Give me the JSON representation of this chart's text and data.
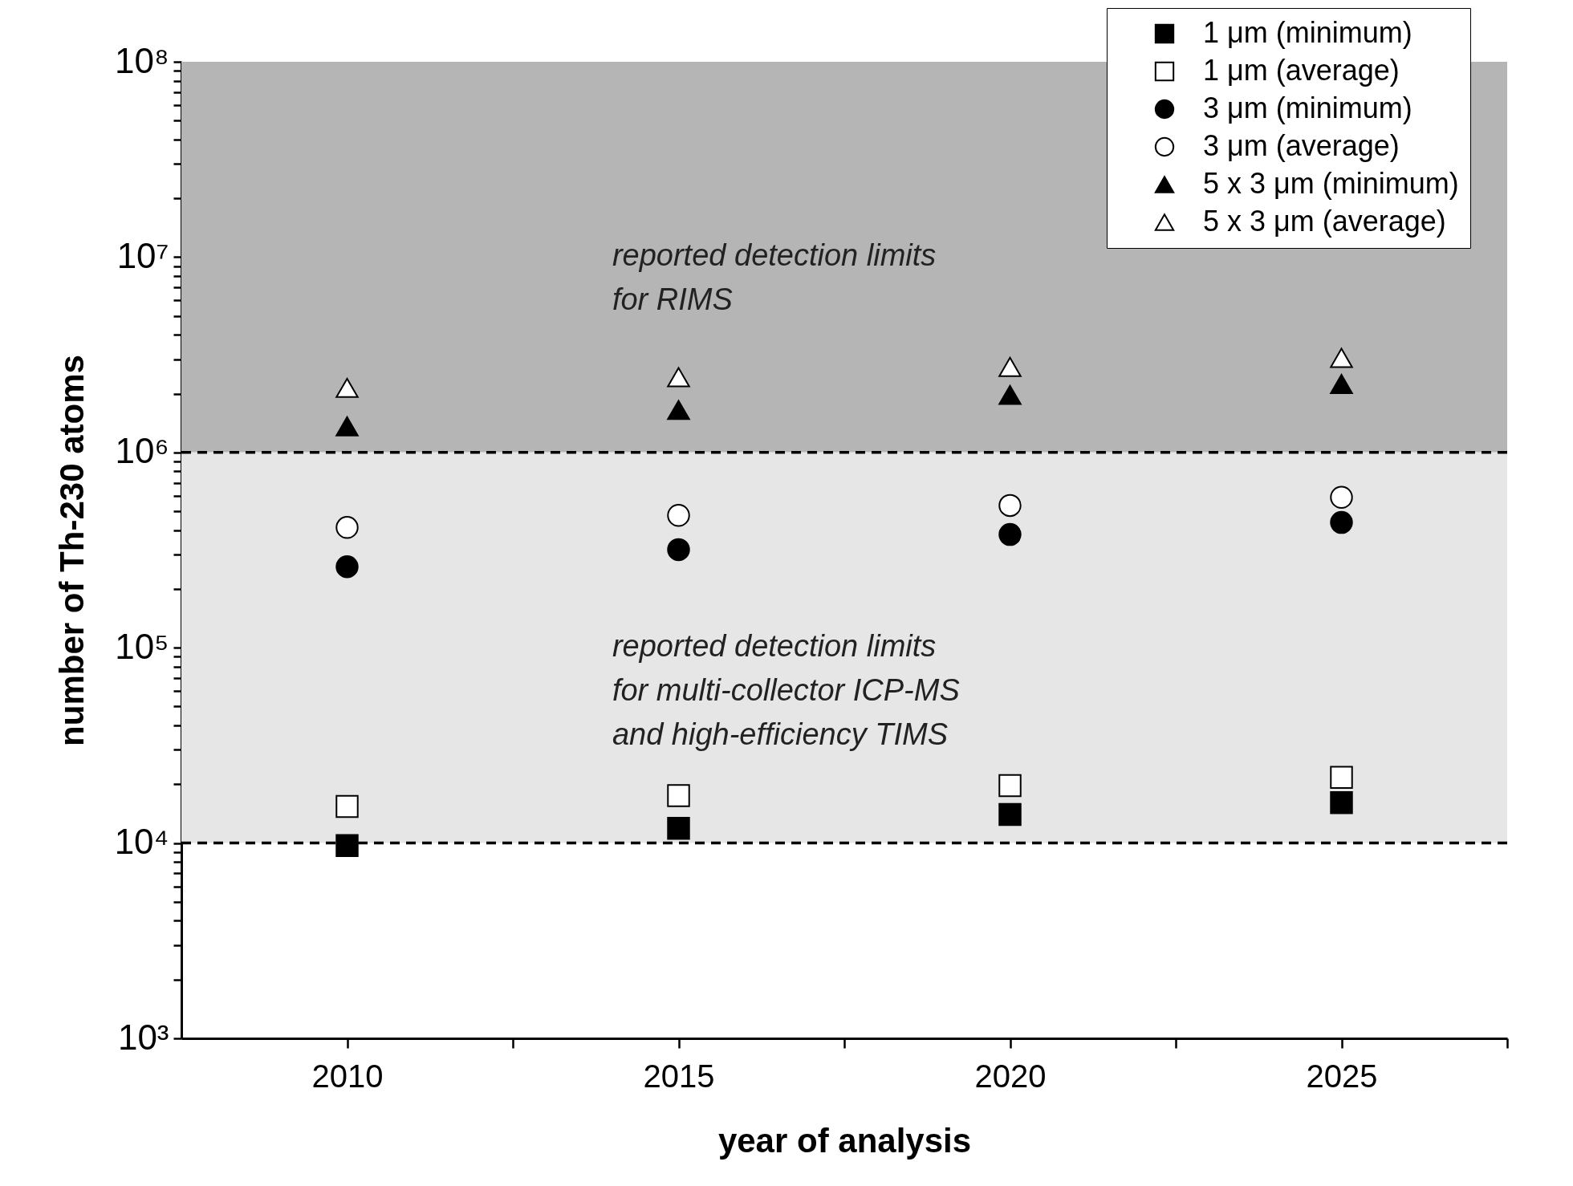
{
  "chart_data": {
    "type": "scatter",
    "xlabel": "year of analysis",
    "ylabel": "number of Th-230 atoms",
    "x": [
      2010,
      2015,
      2020,
      2025
    ],
    "series": [
      {
        "name": "1 μm (minimum)",
        "color": "#000000",
        "marker": "square",
        "values": [
          9700,
          11900,
          14000,
          16100
        ]
      },
      {
        "name": "1 μm (average)",
        "color": "#ffffff",
        "marker": "square",
        "values": [
          15400,
          17500,
          19700,
          21700
        ]
      },
      {
        "name": "3 μm (minimum)",
        "color": "#000000",
        "marker": "circle",
        "values": [
          260000,
          318000,
          380000,
          438000
        ]
      },
      {
        "name": "3 μm (average)",
        "color": "#ffffff",
        "marker": "circle",
        "values": [
          413000,
          476000,
          535000,
          589000
        ]
      },
      {
        "name": "5 x 3 μm (minimum)",
        "color": "#000000",
        "marker": "triangle",
        "values": [
          1360000,
          1650000,
          1970000,
          2240000
        ]
      },
      {
        "name": "5 x 3 μm (average)",
        "color": "#ffffff",
        "marker": "triangle",
        "values": [
          2140000,
          2430000,
          2740000,
          3050000
        ]
      }
    ],
    "log": true,
    "xlim": [
      2007.5,
      2027.5
    ],
    "xticks": [
      2010,
      {
        "value": 2012.5,
        "label": null
      },
      2015,
      {
        "value": 2017.5,
        "label": null
      },
      2020,
      {
        "value": 2022.5,
        "label": null
      },
      2025,
      {
        "value": 2027.5,
        "label": null
      }
    ],
    "ylim": [
      1000,
      100000000
    ],
    "yticks": [
      {
        "value": 1000,
        "label": "10³"
      },
      {
        "value": 2000,
        "label": null
      },
      {
        "value": 3000,
        "label": null
      },
      {
        "value": 4000,
        "label": null
      },
      {
        "value": 5000,
        "label": null
      },
      {
        "value": 6000,
        "label": null
      },
      {
        "value": 7000,
        "label": null
      },
      {
        "value": 8000,
        "label": null
      },
      {
        "value": 9000,
        "label": null
      },
      {
        "value": 10000,
        "label": "10⁴"
      },
      {
        "value": 20000,
        "label": null
      },
      {
        "value": 30000,
        "label": null
      },
      {
        "value": 40000,
        "label": null
      },
      {
        "value": 50000,
        "label": null
      },
      {
        "value": 60000,
        "label": null
      },
      {
        "value": 70000,
        "label": null
      },
      {
        "value": 80000,
        "label": null
      },
      {
        "value": 90000,
        "label": null
      },
      {
        "value": 100000,
        "label": "10⁵"
      },
      {
        "value": 200000,
        "label": null
      },
      {
        "value": 300000,
        "label": null
      },
      {
        "value": 400000,
        "label": null
      },
      {
        "value": 500000,
        "label": null
      },
      {
        "value": 600000,
        "label": null
      },
      {
        "value": 700000,
        "label": null
      },
      {
        "value": 800000,
        "label": null
      },
      {
        "value": 900000,
        "label": null
      },
      {
        "value": 1000000,
        "label": "10⁶"
      },
      {
        "value": 2000000,
        "label": null
      },
      {
        "value": 3000000,
        "label": null
      },
      {
        "value": 4000000,
        "label": null
      },
      {
        "value": 5000000,
        "label": null
      },
      {
        "value": 6000000,
        "label": null
      },
      {
        "value": 7000000,
        "label": null
      },
      {
        "value": 8000000,
        "label": null
      },
      {
        "value": 9000000,
        "label": null
      },
      {
        "value": 10000000,
        "label": "10⁷"
      },
      {
        "value": 20000000,
        "label": null
      },
      {
        "value": 30000000,
        "label": null
      },
      {
        "value": 40000000,
        "label": null
      },
      {
        "value": 50000000,
        "label": null
      },
      {
        "value": 60000000,
        "label": null
      },
      {
        "value": 70000000,
        "label": null
      },
      {
        "value": 80000000,
        "label": null
      },
      {
        "value": 90000000,
        "label": null
      },
      {
        "value": 100000000,
        "label": "10⁸"
      }
    ],
    "bands": [
      {
        "axis": "y",
        "from": 1000000,
        "to": 100000000,
        "label": "reported detection limits\nfor RIMS",
        "color": "#b5b5b5"
      },
      {
        "axis": "y",
        "from": 10000,
        "to": 1000000,
        "label": "reported detection limits\nfor multi-collector ICP-MS\nand high-efficiency TIMS",
        "color": "#e6e6e6"
      }
    ],
    "ref_lines": [
      {
        "axis": "y",
        "value": 10000,
        "line_style": "dashed",
        "color": "#000000"
      },
      {
        "axis": "y",
        "value": 1000000,
        "line_style": "dashed",
        "color": "#000000"
      }
    ],
    "legend": "top right"
  }
}
